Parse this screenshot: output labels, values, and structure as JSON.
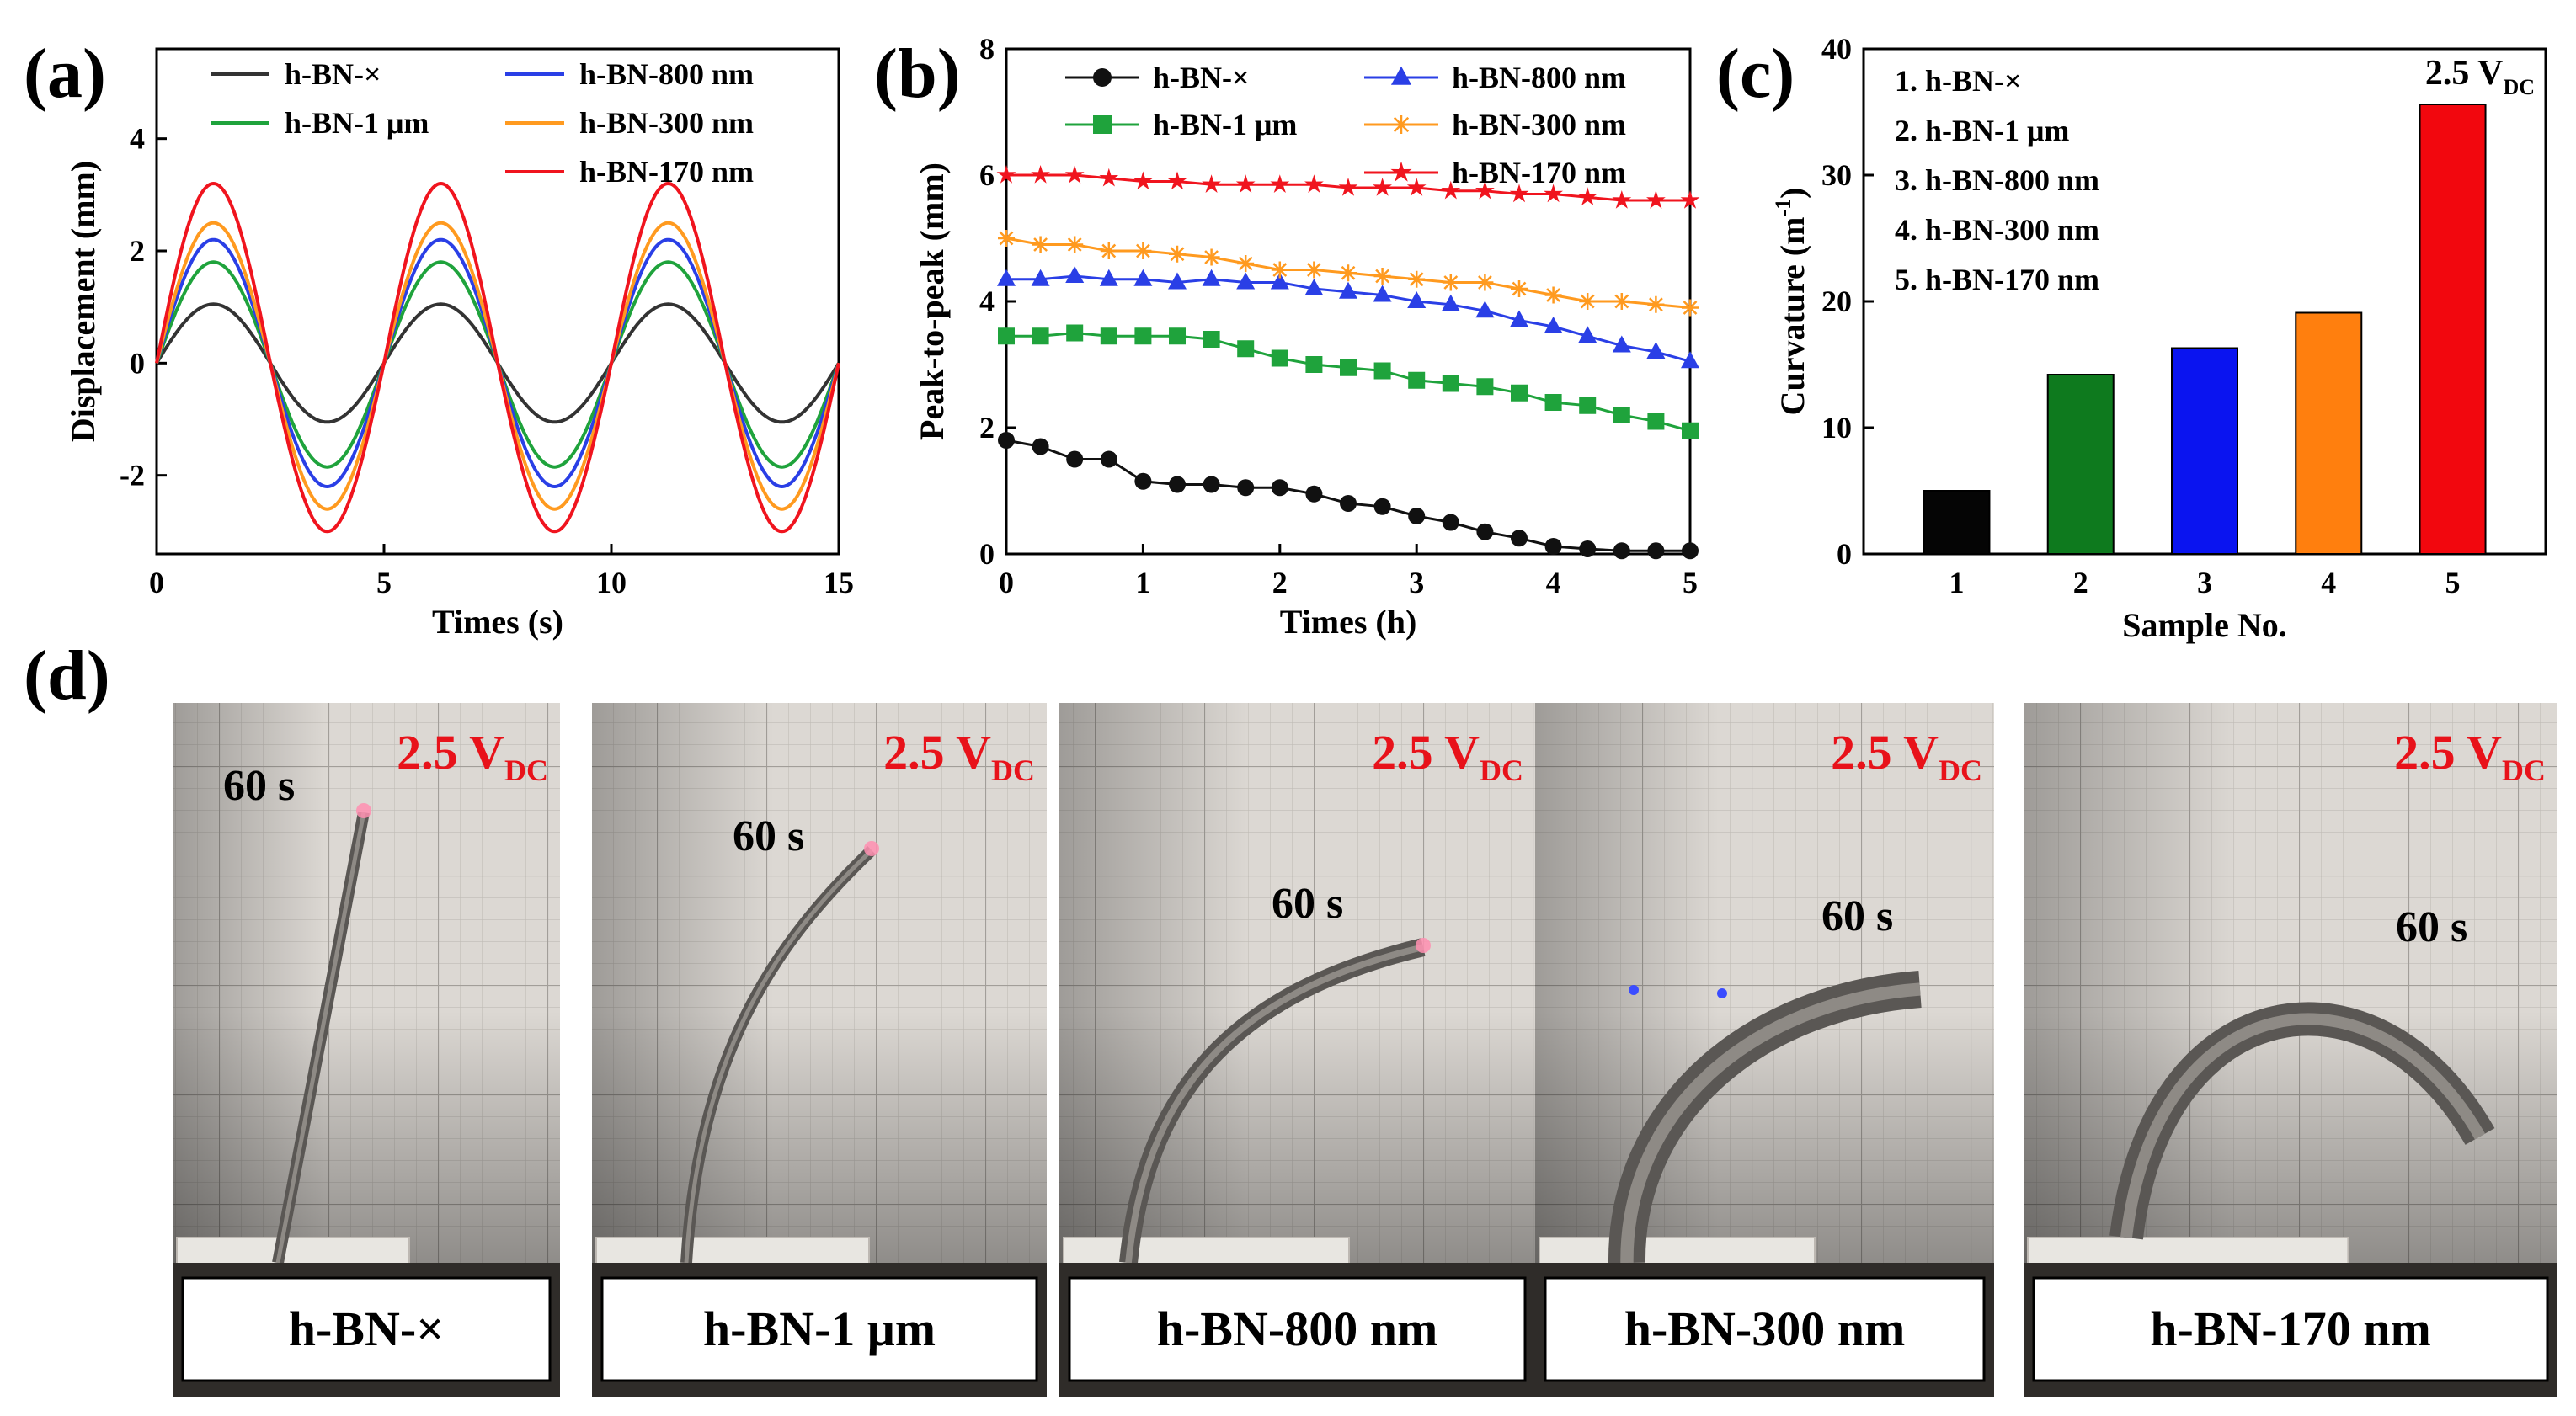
{
  "panels": {
    "a": {
      "letter": "(a)",
      "chart_data": {
        "type": "line",
        "xlabel": "Times (s)",
        "ylabel": "Displacement (mm)",
        "xlim": [
          0,
          15
        ],
        "ylim": [
          -3.4,
          5.6
        ],
        "xticks": [
          "0",
          "5",
          "10",
          "15"
        ],
        "yticks": [
          "-2",
          "0",
          "2",
          "4"
        ],
        "period_s": 5,
        "series": [
          {
            "name": "h-BN-×",
            "amp_pos": 1.05,
            "amp_neg": 1.05,
            "color": "#333333"
          },
          {
            "name": "h-BN-1 μm",
            "amp_pos": 1.8,
            "amp_neg": 1.85,
            "color": "#1fa33c"
          },
          {
            "name": "h-BN-800 nm",
            "amp_pos": 2.2,
            "amp_neg": 2.2,
            "color": "#2a3fe6"
          },
          {
            "name": "h-BN-300 nm",
            "amp_pos": 2.5,
            "amp_neg": 2.6,
            "color": "#ff9a1f"
          },
          {
            "name": "h-BN-170 nm",
            "amp_pos": 3.2,
            "amp_neg": 3.0,
            "color": "#f0141e"
          }
        ]
      }
    },
    "b": {
      "letter": "(b)",
      "chart_data": {
        "type": "line",
        "xlabel": "Times (h)",
        "ylabel": "Peak-to-peak (mm)",
        "xlim": [
          0,
          5
        ],
        "ylim": [
          0,
          8
        ],
        "xticks": [
          "0",
          "1",
          "2",
          "3",
          "4",
          "5"
        ],
        "yticks": [
          "0",
          "2",
          "4",
          "6",
          "8"
        ],
        "x": [
          0,
          0.25,
          0.5,
          0.75,
          1,
          1.25,
          1.5,
          1.75,
          2,
          2.25,
          2.5,
          2.75,
          3,
          3.25,
          3.5,
          3.75,
          4,
          4.25,
          4.5,
          4.75,
          5
        ],
        "series": [
          {
            "name": "h-BN-×",
            "marker": "circle",
            "color": "#111111",
            "values": [
              1.8,
              1.7,
              1.5,
              1.5,
              1.15,
              1.1,
              1.1,
              1.05,
              1.05,
              0.95,
              0.8,
              0.75,
              0.6,
              0.5,
              0.35,
              0.25,
              0.12,
              0.08,
              0.05,
              0.05,
              0.05
            ]
          },
          {
            "name": "h-BN-1 μm",
            "marker": "square",
            "color": "#1fa33c",
            "values": [
              3.45,
              3.45,
              3.5,
              3.45,
              3.45,
              3.45,
              3.4,
              3.25,
              3.1,
              3.0,
              2.95,
              2.9,
              2.75,
              2.7,
              2.65,
              2.55,
              2.4,
              2.35,
              2.2,
              2.1,
              1.95
            ]
          },
          {
            "name": "h-BN-800 nm",
            "marker": "triangle",
            "color": "#2a3fe6",
            "values": [
              4.35,
              4.35,
              4.4,
              4.35,
              4.35,
              4.3,
              4.35,
              4.3,
              4.3,
              4.2,
              4.15,
              4.1,
              4.0,
              3.95,
              3.85,
              3.7,
              3.6,
              3.45,
              3.3,
              3.2,
              3.05
            ]
          },
          {
            "name": "h-BN-300 nm",
            "marker": "star-x",
            "color": "#ff9a1f",
            "values": [
              5.0,
              4.9,
              4.9,
              4.8,
              4.8,
              4.75,
              4.7,
              4.6,
              4.5,
              4.5,
              4.45,
              4.4,
              4.35,
              4.3,
              4.3,
              4.2,
              4.1,
              4.0,
              4.0,
              3.95,
              3.9
            ]
          },
          {
            "name": "h-BN-170 nm",
            "marker": "star",
            "color": "#f0141e",
            "values": [
              6.0,
              6.0,
              6.0,
              5.95,
              5.9,
              5.9,
              5.85,
              5.85,
              5.85,
              5.85,
              5.8,
              5.8,
              5.8,
              5.75,
              5.75,
              5.7,
              5.7,
              5.65,
              5.6,
              5.6,
              5.6
            ]
          }
        ]
      }
    },
    "c": {
      "letter": "(c)",
      "annotation": "2.5 V",
      "annotation_sub": "DC",
      "legend_items": [
        "1. h-BN-×",
        "2. h-BN-1 μm",
        "3. h-BN-800 nm",
        "4. h-BN-300 nm",
        "5. h-BN-170 nm"
      ],
      "chart_data": {
        "type": "bar",
        "xlabel": "Sample No.",
        "ylabel": "Curvature (m",
        "ylabel_sup": "-1",
        "ylabel_end": ")",
        "ylim": [
          0,
          40
        ],
        "yticks": [
          "0",
          "10",
          "20",
          "30",
          "40"
        ],
        "categories": [
          "1",
          "2",
          "3",
          "4",
          "5"
        ],
        "values": [
          5.0,
          14.2,
          16.3,
          19.1,
          35.6
        ],
        "colors": [
          "#050505",
          "#0e7a1e",
          "#0a14f0",
          "#ff7f0e",
          "#f2070e"
        ]
      }
    },
    "d": {
      "letter": "(d)",
      "photos": [
        {
          "label": "h-BN-×",
          "time": "60 s",
          "voltage": "2.5 V",
          "voltage_sub": "DC"
        },
        {
          "label": "h-BN-1 μm",
          "time": "60 s",
          "voltage": "2.5 V",
          "voltage_sub": "DC"
        },
        {
          "label": "h-BN-800 nm",
          "time": "60 s",
          "voltage": "2.5 V",
          "voltage_sub": "DC"
        },
        {
          "label": "h-BN-300 nm",
          "time": "60 s",
          "voltage": "2.5 V",
          "voltage_sub": "DC"
        },
        {
          "label": "h-BN-170 nm",
          "time": "60 s",
          "voltage": "2.5 V",
          "voltage_sub": "DC"
        }
      ]
    }
  }
}
